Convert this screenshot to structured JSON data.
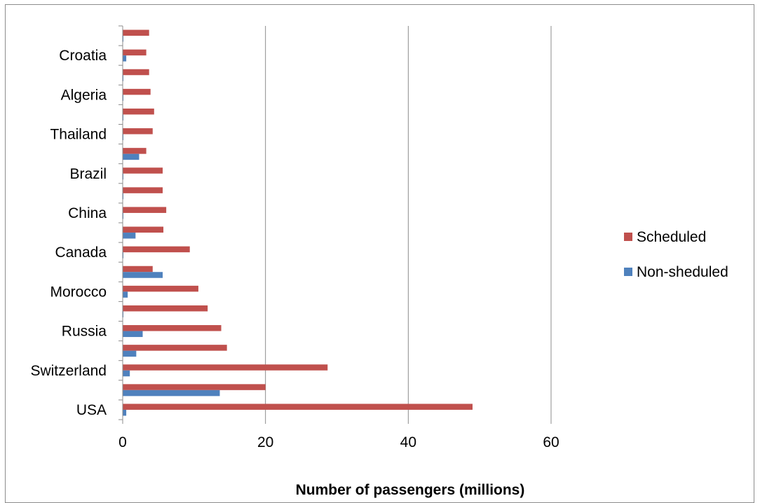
{
  "chart_data": {
    "type": "bar",
    "orientation": "horizontal",
    "categories": [
      "USA",
      "",
      "Switzerland",
      "",
      "Russia",
      "",
      "Morocco",
      "",
      "Canada",
      "",
      "China",
      "",
      "Brazil",
      "",
      "Thailand",
      "",
      "Algeria",
      "",
      "Croatia",
      ""
    ],
    "series": [
      {
        "name": "Scheduled",
        "color": "#c0504d",
        "values": [
          49,
          20,
          28.7,
          14.6,
          13.8,
          11.9,
          10.6,
          4.2,
          9.4,
          5.7,
          6.1,
          5.6,
          5.6,
          3.3,
          4.2,
          4.4,
          3.9,
          3.7,
          3.3,
          3.7
        ]
      },
      {
        "name": "Non-sheduled",
        "color": "#4f81bd",
        "values": [
          0.5,
          13.6,
          1.0,
          1.9,
          2.8,
          0.1,
          0.7,
          5.6,
          0.1,
          1.8,
          0.1,
          0.1,
          0.1,
          2.3,
          0.1,
          0.1,
          0.1,
          0.1,
          0.5,
          0.1
        ]
      }
    ],
    "xlabel": "Number of passengers (millions)",
    "ylabel": "",
    "xlim": [
      0,
      60
    ],
    "xticks": [
      "0",
      "20",
      "40",
      "60"
    ],
    "grid": "vertical",
    "legend_position": "right"
  }
}
